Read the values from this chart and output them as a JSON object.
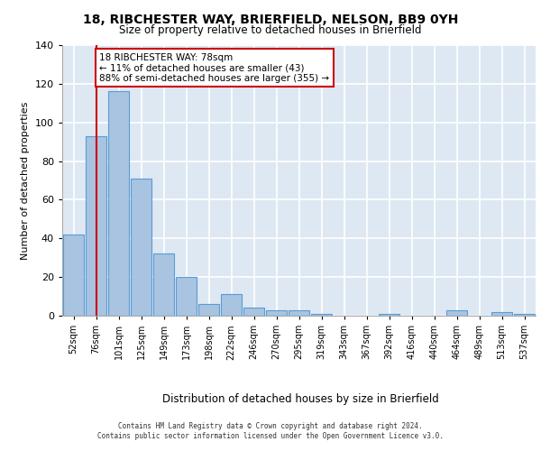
{
  "title": "18, RIBCHESTER WAY, BRIERFIELD, NELSON, BB9 0YH",
  "subtitle": "Size of property relative to detached houses in Brierfield",
  "xlabel": "Distribution of detached houses by size in Brierfield",
  "ylabel": "Number of detached properties",
  "categories": [
    "52sqm",
    "76sqm",
    "101sqm",
    "125sqm",
    "149sqm",
    "173sqm",
    "198sqm",
    "222sqm",
    "246sqm",
    "270sqm",
    "295sqm",
    "319sqm",
    "343sqm",
    "367sqm",
    "392sqm",
    "416sqm",
    "440sqm",
    "464sqm",
    "489sqm",
    "513sqm",
    "537sqm"
  ],
  "values": [
    42,
    93,
    116,
    71,
    32,
    20,
    6,
    11,
    4,
    3,
    3,
    1,
    0,
    0,
    1,
    0,
    0,
    3,
    0,
    2,
    1
  ],
  "bar_color": "#a8c4e0",
  "bar_edge_color": "#5b9bd5",
  "background_color": "#dde8f3",
  "grid_color": "#ffffff",
  "property_line_x": 1,
  "property_line_color": "#cc0000",
  "annotation_text": "18 RIBCHESTER WAY: 78sqm\n← 11% of detached houses are smaller (43)\n88% of semi-detached houses are larger (355) →",
  "annotation_box_color": "#ffffff",
  "annotation_box_edge_color": "#cc0000",
  "ylim": [
    0,
    140
  ],
  "yticks": [
    0,
    20,
    40,
    60,
    80,
    100,
    120,
    140
  ],
  "footer_line1": "Contains HM Land Registry data © Crown copyright and database right 2024.",
  "footer_line2": "Contains public sector information licensed under the Open Government Licence v3.0."
}
